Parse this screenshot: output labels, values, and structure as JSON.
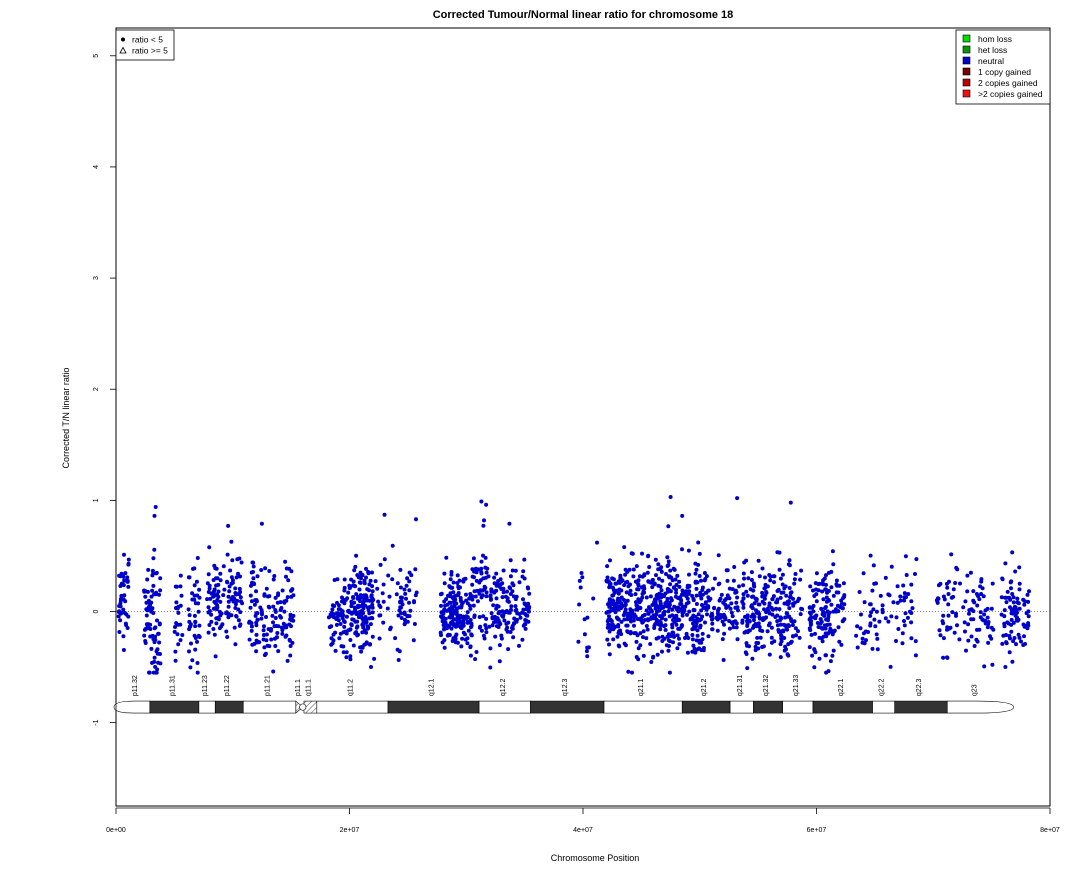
{
  "chart_data": {
    "type": "scatter",
    "title": "Corrected Tumour/Normal linear ratio for chromosome  18",
    "xlabel": "Chromosome Position",
    "ylabel": "Corrected T/N linear ratio",
    "xlim": [
      0,
      80000000
    ],
    "ylim": [
      -1.75,
      5.25
    ],
    "x_ticks": [
      0,
      20000000,
      40000000,
      60000000,
      80000000
    ],
    "x_tick_labels": [
      "0e+00",
      "2e+07",
      "4e+07",
      "6e+07",
      "8e+07"
    ],
    "y_ticks": [
      -1,
      0,
      1,
      2,
      3,
      4,
      5
    ],
    "y_tick_labels": [
      "-1",
      "0",
      "1",
      "2",
      "3",
      "4",
      "5"
    ],
    "reference_line": 0,
    "point_color": "#0000cc",
    "shape_legend": {
      "placement": "top-left",
      "entries": [
        {
          "symbol": "filled-circle",
          "label": "ratio < 5"
        },
        {
          "symbol": "open-triangle",
          "label": "ratio >= 5"
        }
      ]
    },
    "color_legend": {
      "placement": "top-right",
      "entries": [
        {
          "label": "hom loss",
          "color": "#00dd00"
        },
        {
          "label": "het loss",
          "color": "#009900"
        },
        {
          "label": "neutral",
          "color": "#0000cc"
        },
        {
          "label": "1 copy gained",
          "color": "#770000"
        },
        {
          "label": "2 copies gained",
          "color": "#bb0000"
        },
        {
          "label": ">2 copies gained",
          "color": "#ee1111"
        }
      ]
    },
    "clusters": [
      {
        "x_start": 200000,
        "x_end": 1100000,
        "center": 0.05,
        "spread": 0.22,
        "n": 45
      },
      {
        "x_start": 2400000,
        "x_end": 3800000,
        "center": -0.05,
        "spread": 0.3,
        "n": 80
      },
      {
        "x_start": 5000000,
        "x_end": 5700000,
        "center": -0.02,
        "spread": 0.2,
        "n": 22
      },
      {
        "x_start": 6200000,
        "x_end": 7200000,
        "center": 0.0,
        "spread": 0.22,
        "n": 40
      },
      {
        "x_start": 7800000,
        "x_end": 10800000,
        "center": 0.12,
        "spread": 0.2,
        "n": 120
      },
      {
        "x_start": 11400000,
        "x_end": 15200000,
        "center": -0.02,
        "spread": 0.2,
        "n": 140
      },
      {
        "x_start": 18200000,
        "x_end": 20000000,
        "center": -0.02,
        "spread": 0.18,
        "n": 70
      },
      {
        "x_start": 20000000,
        "x_end": 22000000,
        "center": 0.02,
        "spread": 0.2,
        "n": 150
      },
      {
        "x_start": 22000000,
        "x_end": 25800000,
        "center": 0.05,
        "spread": 0.2,
        "n": 70
      },
      {
        "x_start": 27800000,
        "x_end": 30500000,
        "center": 0.02,
        "spread": 0.18,
        "n": 170
      },
      {
        "x_start": 30500000,
        "x_end": 32000000,
        "center": 0.2,
        "spread": 0.25,
        "n": 60
      },
      {
        "x_start": 32000000,
        "x_end": 35400000,
        "center": 0.02,
        "spread": 0.2,
        "n": 140
      },
      {
        "x_start": 39600000,
        "x_end": 41000000,
        "center": 0.02,
        "spread": 0.2,
        "n": 14
      },
      {
        "x_start": 42000000,
        "x_end": 50200000,
        "center": 0.05,
        "spread": 0.22,
        "n": 520
      },
      {
        "x_start": 50200000,
        "x_end": 53600000,
        "center": 0.05,
        "spread": 0.2,
        "n": 110
      },
      {
        "x_start": 53600000,
        "x_end": 58800000,
        "center": 0.02,
        "spread": 0.22,
        "n": 230
      },
      {
        "x_start": 59400000,
        "x_end": 62400000,
        "center": -0.02,
        "spread": 0.2,
        "n": 140
      },
      {
        "x_start": 63200000,
        "x_end": 68600000,
        "center": 0.0,
        "spread": 0.2,
        "n": 80
      },
      {
        "x_start": 70300000,
        "x_end": 75200000,
        "center": 0.0,
        "spread": 0.2,
        "n": 100
      },
      {
        "x_start": 75800000,
        "x_end": 78200000,
        "center": 0.02,
        "spread": 0.2,
        "n": 90
      }
    ],
    "outliers": [
      {
        "x": 3400000,
        "y": 0.94
      },
      {
        "x": 3300000,
        "y": 0.86
      },
      {
        "x": 9600000,
        "y": 0.77
      },
      {
        "x": 12500000,
        "y": 0.79
      },
      {
        "x": 23000000,
        "y": 0.87
      },
      {
        "x": 25700000,
        "y": 0.83
      },
      {
        "x": 31300000,
        "y": 0.99
      },
      {
        "x": 31700000,
        "y": 0.96
      },
      {
        "x": 47500000,
        "y": 1.03
      },
      {
        "x": 48500000,
        "y": 0.86
      },
      {
        "x": 53200000,
        "y": 1.02
      },
      {
        "x": 57800000,
        "y": 0.98
      },
      {
        "x": 33700000,
        "y": 0.79
      },
      {
        "x": 41200000,
        "y": 0.62
      },
      {
        "x": 7000000,
        "y": -0.55
      }
    ],
    "ideogram": {
      "y_center": -0.86,
      "centromere": 16000000,
      "bands": [
        {
          "name": "p11.32",
          "start": 0,
          "end": 2900000,
          "stain": "gneg"
        },
        {
          "name": "p11.31",
          "start": 2900000,
          "end": 7100000,
          "stain": "gpos"
        },
        {
          "name": "p11.23",
          "start": 7100000,
          "end": 8500000,
          "stain": "gneg"
        },
        {
          "name": "p11.22",
          "start": 8500000,
          "end": 10900000,
          "stain": "gpos"
        },
        {
          "name": "p11.21",
          "start": 10900000,
          "end": 15400000,
          "stain": "gneg"
        },
        {
          "name": "p11.1",
          "start": 15400000,
          "end": 16100000,
          "stain": "acen"
        },
        {
          "name": "q11.1",
          "start": 16100000,
          "end": 17200000,
          "stain": "gvar"
        },
        {
          "name": "q11.2",
          "start": 17200000,
          "end": 23300000,
          "stain": "gneg"
        },
        {
          "name": "q12.1",
          "start": 23300000,
          "end": 31100000,
          "stain": "gpos"
        },
        {
          "name": "q12.2",
          "start": 31100000,
          "end": 35500000,
          "stain": "gneg"
        },
        {
          "name": "q12.3",
          "start": 35500000,
          "end": 41800000,
          "stain": "gpos"
        },
        {
          "name": "q21.1",
          "start": 41800000,
          "end": 48500000,
          "stain": "gneg"
        },
        {
          "name": "q21.2",
          "start": 48500000,
          "end": 52600000,
          "stain": "gpos"
        },
        {
          "name": "q21.31",
          "start": 52600000,
          "end": 54600000,
          "stain": "gneg"
        },
        {
          "name": "q21.32",
          "start": 54600000,
          "end": 57100000,
          "stain": "gpos"
        },
        {
          "name": "q21.33",
          "start": 57100000,
          "end": 59700000,
          "stain": "gneg"
        },
        {
          "name": "q22.1",
          "start": 59700000,
          "end": 64800000,
          "stain": "gpos"
        },
        {
          "name": "q22.2",
          "start": 64800000,
          "end": 66700000,
          "stain": "gneg"
        },
        {
          "name": "q22.3",
          "start": 66700000,
          "end": 71200000,
          "stain": "gpos"
        },
        {
          "name": "q23",
          "start": 71200000,
          "end": 76200000,
          "stain": "gneg"
        }
      ]
    }
  }
}
